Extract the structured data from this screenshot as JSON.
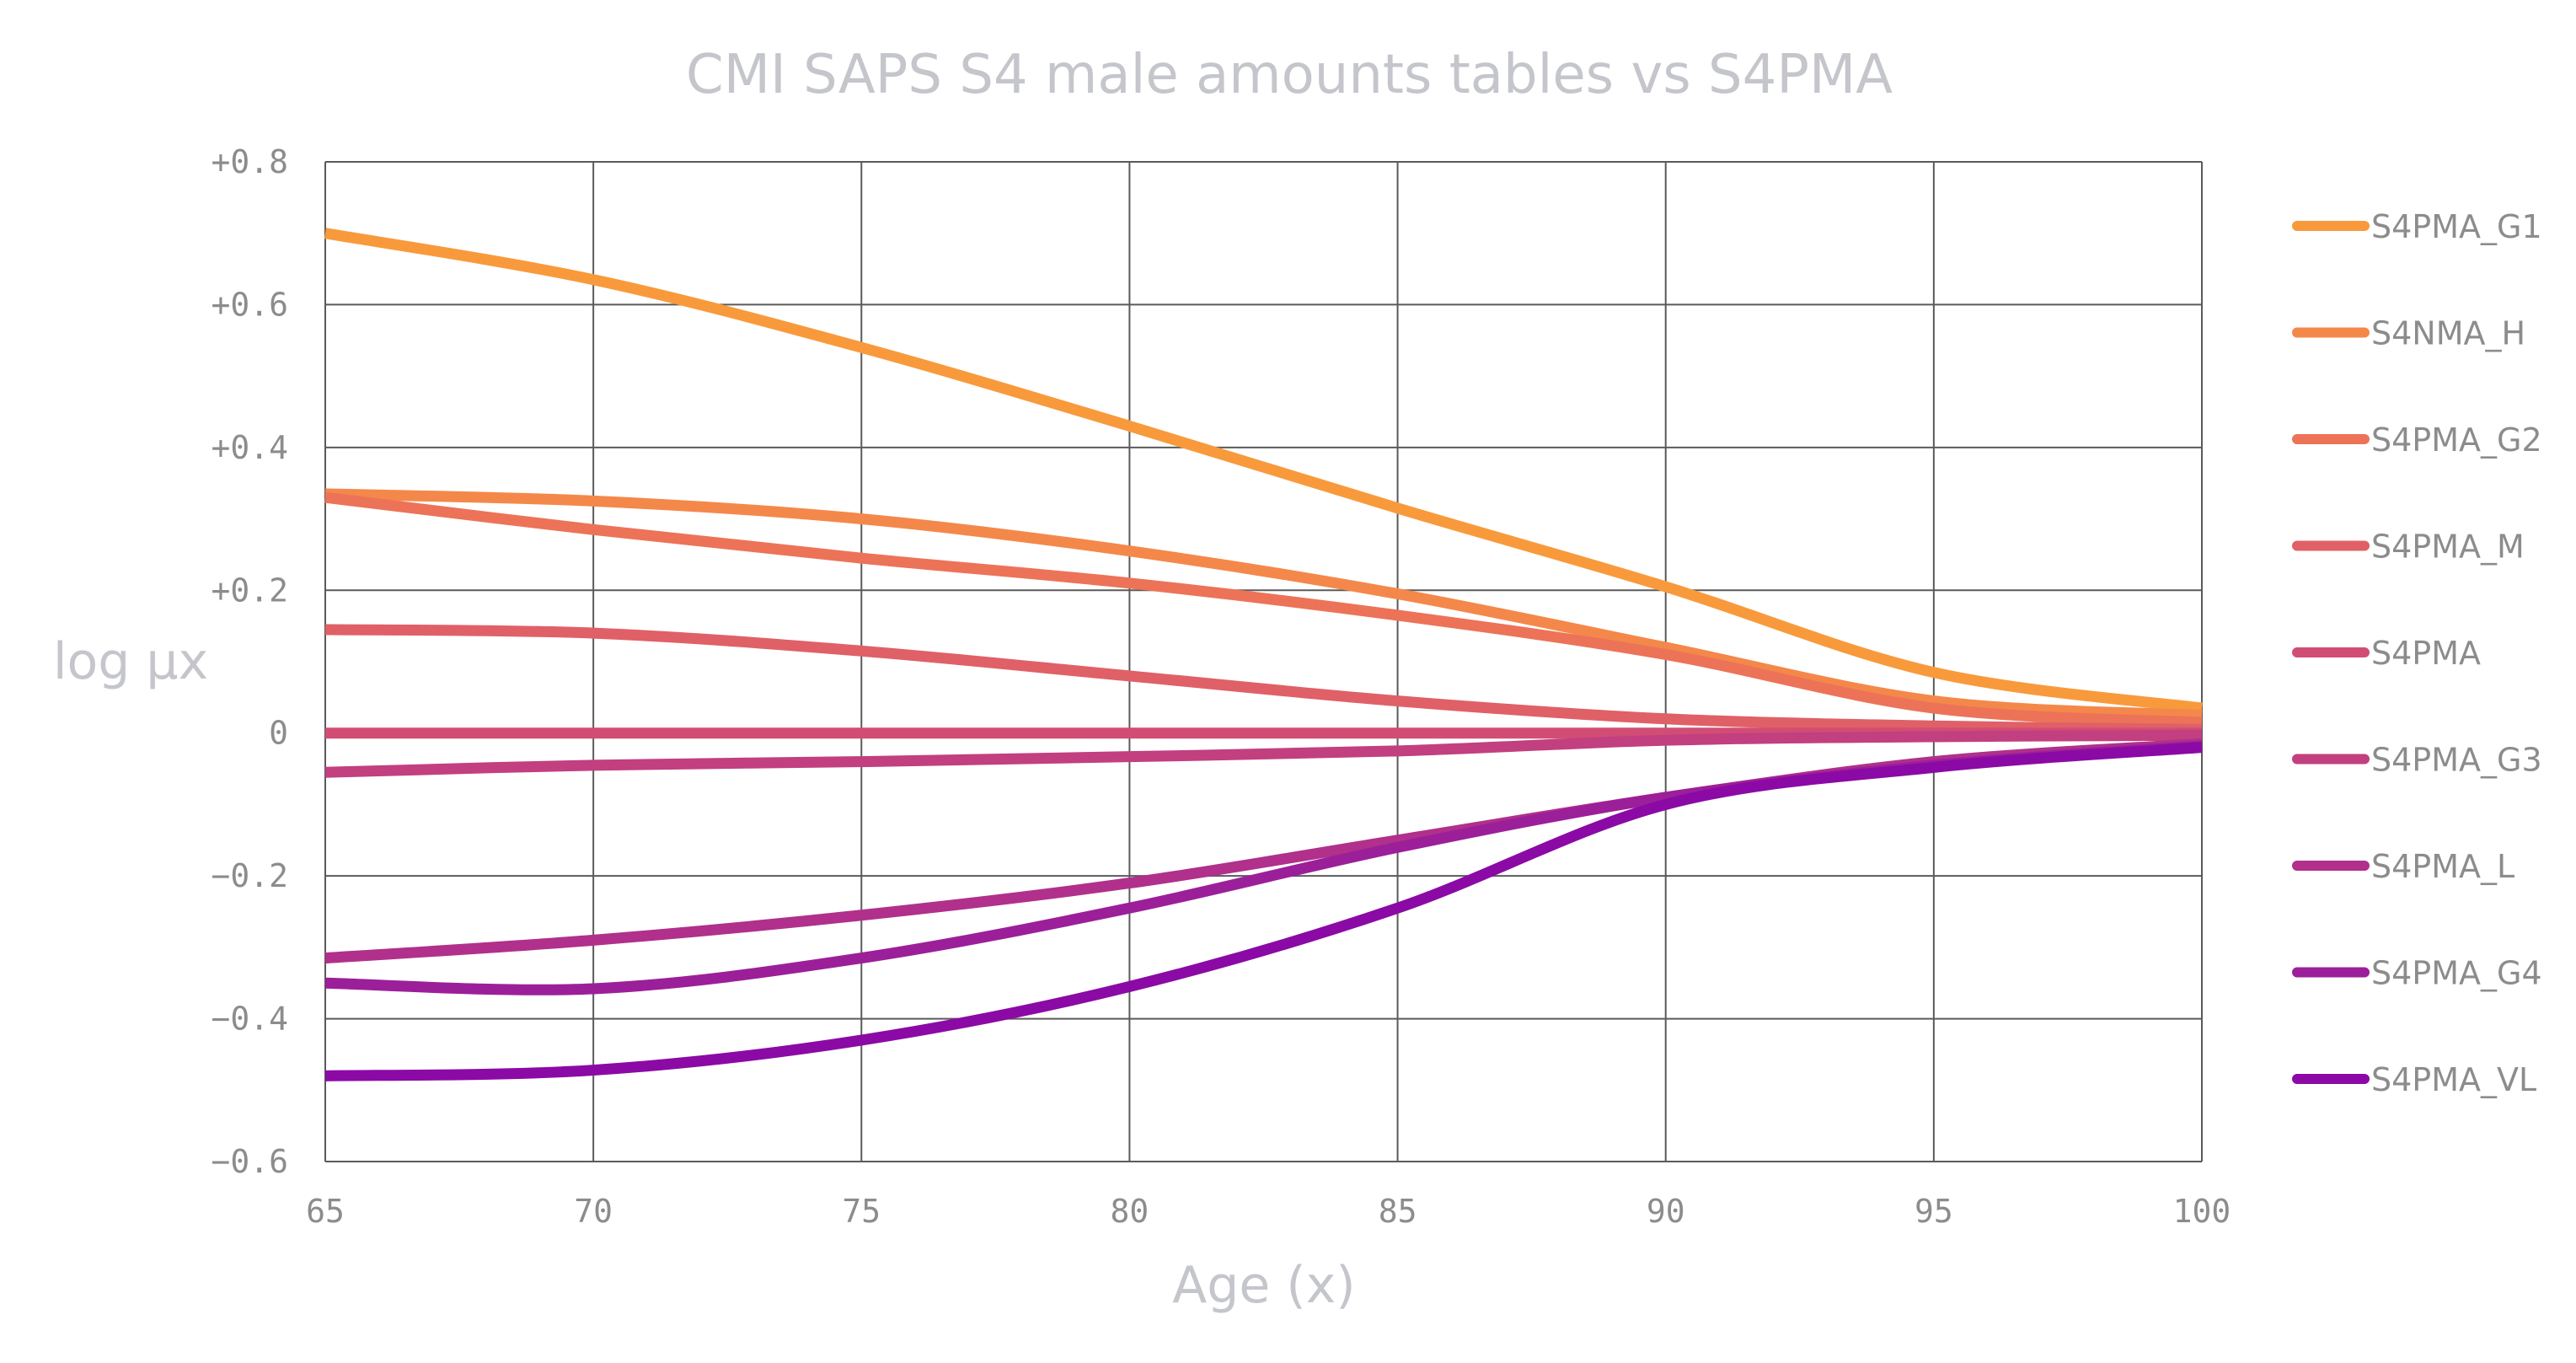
{
  "chart_data": {
    "type": "line",
    "title": "CMI SAPS S4 male amounts tables vs S4PMA",
    "xlabel": "Age (x)",
    "ylabel": "log μx",
    "xlim": [
      65,
      100
    ],
    "ylim": [
      -0.6,
      0.8
    ],
    "xticks": [
      65,
      70,
      75,
      80,
      85,
      90,
      95,
      100
    ],
    "xtick_labels": [
      "65",
      "70",
      "75",
      "80",
      "85",
      "90",
      "95",
      "100"
    ],
    "yticks": [
      0.8,
      0.6,
      0.4,
      0.2,
      0,
      -0.2,
      -0.4,
      -0.6
    ],
    "ytick_labels": [
      "+0.8",
      "+0.6",
      "+0.4",
      "+0.2",
      "0",
      "−0.2",
      "−0.4",
      "−0.6"
    ],
    "grid": true,
    "legend_position": "right",
    "x": [
      65,
      70,
      75,
      80,
      85,
      90,
      95,
      100
    ],
    "series": [
      {
        "name": "S4PMA_G1",
        "color": "#f89a3c",
        "values": [
          0.7,
          0.635,
          0.54,
          0.43,
          0.315,
          0.205,
          0.085,
          0.035
        ]
      },
      {
        "name": "S4NMA_H",
        "color": "#f4884a",
        "values": [
          0.335,
          0.325,
          0.3,
          0.255,
          0.195,
          0.12,
          0.045,
          0.025
        ]
      },
      {
        "name": "S4PMA_G2",
        "color": "#ec7358",
        "values": [
          0.33,
          0.285,
          0.245,
          0.21,
          0.165,
          0.11,
          0.035,
          0.015
        ]
      },
      {
        "name": "S4PMA_M",
        "color": "#e06067",
        "values": [
          0.145,
          0.14,
          0.115,
          0.08,
          0.045,
          0.02,
          0.01,
          0.005
        ]
      },
      {
        "name": "S4PMA",
        "color": "#d24d74",
        "values": [
          0,
          0,
          0,
          0,
          0,
          0,
          0,
          0
        ]
      },
      {
        "name": "S4PMA_G3",
        "color": "#c23f80",
        "values": [
          -0.055,
          -0.045,
          -0.04,
          -0.033,
          -0.025,
          -0.01,
          -0.005,
          -0.003
        ]
      },
      {
        "name": "S4PMA_L",
        "color": "#b0308c",
        "values": [
          -0.315,
          -0.29,
          -0.255,
          -0.21,
          -0.15,
          -0.09,
          -0.04,
          -0.015
        ]
      },
      {
        "name": "S4PMA_G4",
        "color": "#9c1f9a",
        "values": [
          -0.35,
          -0.358,
          -0.315,
          -0.245,
          -0.16,
          -0.09,
          -0.045,
          -0.018
        ]
      },
      {
        "name": "S4PMA_VL",
        "color": "#8b0aa5",
        "values": [
          -0.48,
          -0.472,
          -0.43,
          -0.355,
          -0.245,
          -0.1,
          -0.048,
          -0.02
        ]
      }
    ]
  }
}
